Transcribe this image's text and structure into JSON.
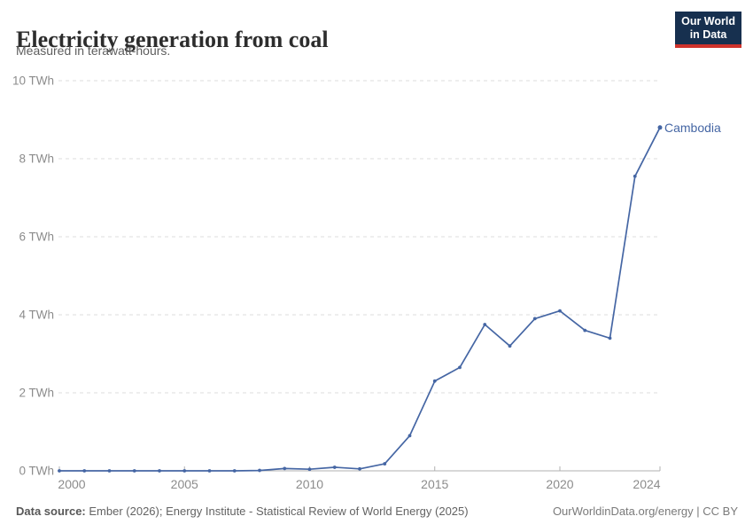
{
  "header": {
    "title": "Electricity generation from coal",
    "subtitle": "Measured in terawatt-hours.",
    "logo_line1": "Our World",
    "logo_line2": "in Data"
  },
  "colors": {
    "line": "#4566a4",
    "series_label": "#4566a4",
    "grid": "#dddddd",
    "axis": "#b0b0b0",
    "tick_label": "#8c8c8c",
    "logo_bg": "#17304f",
    "logo_bar": "#cf322b"
  },
  "chart_data": {
    "type": "line",
    "title": "Electricity generation from coal",
    "subtitle": "Measured in terawatt-hours.",
    "xlabel": "",
    "ylabel": "TWh",
    "xlim": [
      2000,
      2024
    ],
    "ylim": [
      0,
      10
    ],
    "x_ticks": [
      2000,
      2005,
      2010,
      2015,
      2020,
      2024
    ],
    "y_ticks": [
      0,
      2,
      4,
      6,
      8,
      10
    ],
    "y_tick_suffix": " TWh",
    "grid": "horizontal-dashed",
    "legend_position": "line-end",
    "x": [
      2000,
      2001,
      2002,
      2003,
      2004,
      2005,
      2006,
      2007,
      2008,
      2009,
      2010,
      2011,
      2012,
      2013,
      2014,
      2015,
      2016,
      2017,
      2018,
      2019,
      2020,
      2021,
      2022,
      2023,
      2024
    ],
    "series": [
      {
        "name": "Cambodia",
        "color": "#4566a4",
        "values": [
          0,
          0,
          0,
          0,
          0,
          0,
          0,
          0,
          0.01,
          0.06,
          0.04,
          0.09,
          0.05,
          0.18,
          0.9,
          2.3,
          2.65,
          3.75,
          3.2,
          3.9,
          4.1,
          3.6,
          3.4,
          7.55,
          8.8
        ]
      }
    ]
  },
  "footer": {
    "source_label": "Data source:",
    "source_text": "Ember (2026); Energy Institute - Statistical Review of World Energy (2025)",
    "right_text": "OurWorldinData.org/energy | CC BY"
  }
}
